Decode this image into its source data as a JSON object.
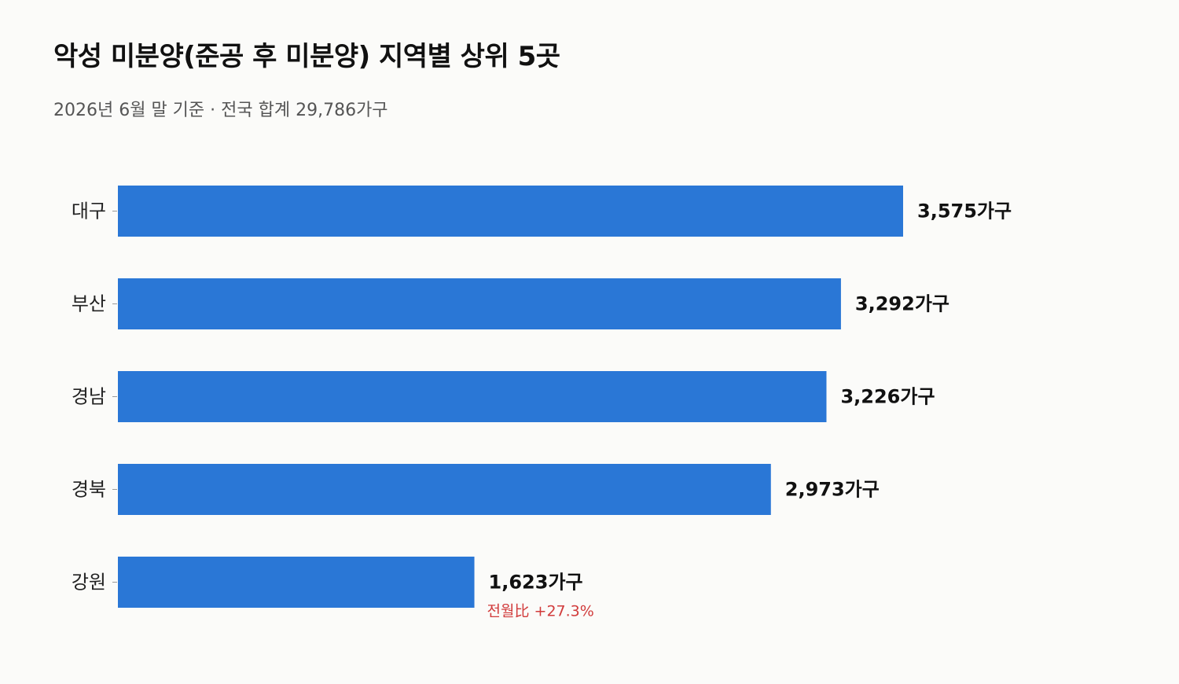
{
  "title": "악성 미분양(준공 후 미분양) 지역별 상위 5곳",
  "subtitle": "2026년 6월 말 기준 · 전국 합계 29,786가구",
  "colors": {
    "bar": "#2a77d6",
    "value_text": "#111111",
    "note_text": "#d13b3b",
    "background": "#fbfbf9"
  },
  "chart_data": {
    "type": "bar",
    "orientation": "horizontal",
    "categories": [
      "대구",
      "부산",
      "경남",
      "경북",
      "강원"
    ],
    "values": [
      3575,
      3292,
      3226,
      2973,
      1623
    ],
    "value_labels": [
      "3,575가구",
      "3,292가구",
      "3,226가구",
      "2,973가구",
      "1,623가구"
    ],
    "notes": [
      "",
      "",
      "",
      "",
      "전월比 +27.3%"
    ],
    "unit": "가구",
    "xlim": [
      0,
      3575
    ],
    "grid": false,
    "legend": "none"
  }
}
